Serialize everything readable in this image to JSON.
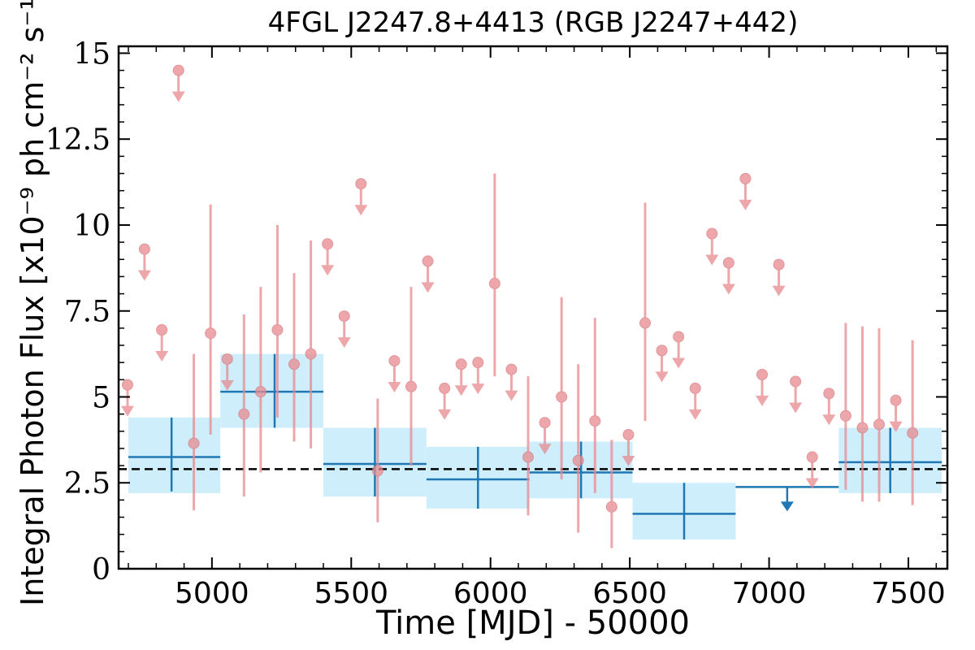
{
  "chart_data": {
    "type": "scatter",
    "title": "4FGL J2247.8+4413 (RGB J2247+442)",
    "xlabel": "Time [MJD] - 50000",
    "ylabel": "Integral Photon Flux [x10⁻⁹ ph cm⁻² s⁻¹]",
    "xlim": [
      4665,
      7640
    ],
    "ylim": [
      0,
      15.2
    ],
    "xticks": [
      5000,
      5500,
      6000,
      6500,
      7000,
      7500
    ],
    "xtick_labels": [
      "5000",
      "5500",
      "6000",
      "6500",
      "7000",
      "7500"
    ],
    "yticks": [
      0,
      2.5,
      5,
      7.5,
      10,
      12.5,
      15
    ],
    "ytick_labels": [
      "0",
      "2.5",
      "5",
      "7.5",
      "10",
      "12.5",
      "15"
    ],
    "reference_line": {
      "y": 2.9,
      "style": "dashed"
    },
    "colors": {
      "short_bins": "#e88a8f",
      "long_bins": "#1f77b4",
      "long_bins_band": "#cfeefc",
      "reference": "#000000"
    },
    "series": [
      {
        "points": [
          {
            "x": 4697,
            "y": 5.35,
            "ul": true
          },
          {
            "x": 4758,
            "y": 9.3,
            "ul": true
          },
          {
            "x": 4820,
            "y": 6.95,
            "ul": true
          },
          {
            "x": 4880,
            "y": 14.5,
            "ul": true
          },
          {
            "x": 4935,
            "y": 3.65,
            "lo": 1.7,
            "hi": 6.25
          },
          {
            "x": 4995,
            "y": 6.85,
            "lo": 3.9,
            "hi": 10.6
          },
          {
            "x": 5055,
            "y": 6.1,
            "ul": true
          },
          {
            "x": 5115,
            "y": 4.5,
            "lo": 2.1,
            "hi": 7.4
          },
          {
            "x": 5175,
            "y": 5.15,
            "lo": 2.8,
            "hi": 8.2
          },
          {
            "x": 5235,
            "y": 6.95,
            "lo": 4.4,
            "hi": 10.0
          },
          {
            "x": 5295,
            "y": 5.95,
            "lo": 3.7,
            "hi": 8.6
          },
          {
            "x": 5355,
            "y": 6.25,
            "lo": 3.5,
            "hi": 9.55
          },
          {
            "x": 5415,
            "y": 9.45,
            "ul": true
          },
          {
            "x": 5475,
            "y": 7.35,
            "ul": true
          },
          {
            "x": 5535,
            "y": 11.2,
            "ul": true
          },
          {
            "x": 5595,
            "y": 2.85,
            "lo": 1.35,
            "hi": 4.95
          },
          {
            "x": 5655,
            "y": 6.05,
            "ul": true
          },
          {
            "x": 5715,
            "y": 5.3,
            "lo": 3.0,
            "hi": 8.2
          },
          {
            "x": 5775,
            "y": 8.95,
            "ul": true
          },
          {
            "x": 5835,
            "y": 5.25,
            "ul": true
          },
          {
            "x": 5895,
            "y": 5.95,
            "ul": true
          },
          {
            "x": 5955,
            "y": 6.0,
            "ul": true
          },
          {
            "x": 6015,
            "y": 8.3,
            "lo": 5.6,
            "hi": 11.5
          },
          {
            "x": 6075,
            "y": 5.8,
            "ul": true
          },
          {
            "x": 6135,
            "y": 3.25,
            "lo": 1.55,
            "hi": 5.6
          },
          {
            "x": 6195,
            "y": 4.25,
            "ul": true
          },
          {
            "x": 6255,
            "y": 5.0,
            "lo": 2.6,
            "hi": 7.9
          },
          {
            "x": 6315,
            "y": 3.15,
            "lo": 1.05,
            "hi": 5.95
          },
          {
            "x": 6375,
            "y": 4.3,
            "lo": 2.2,
            "hi": 7.3
          },
          {
            "x": 6435,
            "y": 1.8,
            "lo": 0.6,
            "hi": 3.75
          },
          {
            "x": 6495,
            "y": 3.9,
            "ul": true
          },
          {
            "x": 6555,
            "y": 7.15,
            "lo": 4.3,
            "hi": 10.65
          },
          {
            "x": 6615,
            "y": 6.35,
            "ul": true
          },
          {
            "x": 6675,
            "y": 6.75,
            "ul": true
          },
          {
            "x": 6735,
            "y": 5.25,
            "ul": true
          },
          {
            "x": 6795,
            "y": 9.75,
            "ul": true
          },
          {
            "x": 6855,
            "y": 8.9,
            "ul": true
          },
          {
            "x": 6915,
            "y": 11.35,
            "ul": true
          },
          {
            "x": 6975,
            "y": 5.65,
            "ul": true
          },
          {
            "x": 7035,
            "y": 8.85,
            "ul": true
          },
          {
            "x": 7095,
            "y": 5.45,
            "ul": true
          },
          {
            "x": 7155,
            "y": 3.25,
            "ul": true
          },
          {
            "x": 7215,
            "y": 5.1,
            "ul": true
          },
          {
            "x": 7275,
            "y": 4.45,
            "lo": 2.3,
            "hi": 7.15
          },
          {
            "x": 7335,
            "y": 4.1,
            "lo": 1.95,
            "hi": 7.05
          },
          {
            "x": 7395,
            "y": 4.2,
            "lo": 1.95,
            "hi": 7.0
          },
          {
            "x": 7455,
            "y": 4.9,
            "ul": true
          },
          {
            "x": 7515,
            "y": 3.95,
            "lo": 1.85,
            "hi": 6.65
          }
        ]
      },
      {
        "points": [
          {
            "x0": 4700,
            "x1": 5030,
            "xc": 4855,
            "y": 3.25,
            "lo": 2.25,
            "hi": 4.4,
            "band_lo": 2.2,
            "band_hi": 4.4
          },
          {
            "x0": 5030,
            "x1": 5400,
            "xc": 5225,
            "y": 5.15,
            "lo": 4.1,
            "hi": 6.25,
            "band_lo": 4.1,
            "band_hi": 6.25
          },
          {
            "x0": 5400,
            "x1": 5770,
            "xc": 5585,
            "y": 3.05,
            "lo": 2.1,
            "hi": 4.1,
            "band_lo": 2.1,
            "band_hi": 4.1
          },
          {
            "x0": 5770,
            "x1": 6140,
            "xc": 5955,
            "y": 2.6,
            "lo": 1.75,
            "hi": 3.55,
            "band_lo": 1.75,
            "band_hi": 3.55
          },
          {
            "x0": 6140,
            "x1": 6510,
            "xc": 6325,
            "y": 2.8,
            "lo": 2.05,
            "hi": 3.7,
            "band_lo": 2.05,
            "band_hi": 3.7
          },
          {
            "x0": 6510,
            "x1": 6880,
            "xc": 6695,
            "y": 1.6,
            "lo": 0.85,
            "hi": 2.5,
            "band_lo": 0.85,
            "band_hi": 2.5
          },
          {
            "x0": 6880,
            "x1": 7250,
            "xc": 7065,
            "y": 2.38,
            "ul": true
          },
          {
            "x0": 7250,
            "x1": 7620,
            "xc": 7435,
            "y": 3.1,
            "lo": 2.2,
            "hi": 4.1,
            "band_lo": 2.2,
            "band_hi": 4.1
          }
        ]
      }
    ]
  }
}
